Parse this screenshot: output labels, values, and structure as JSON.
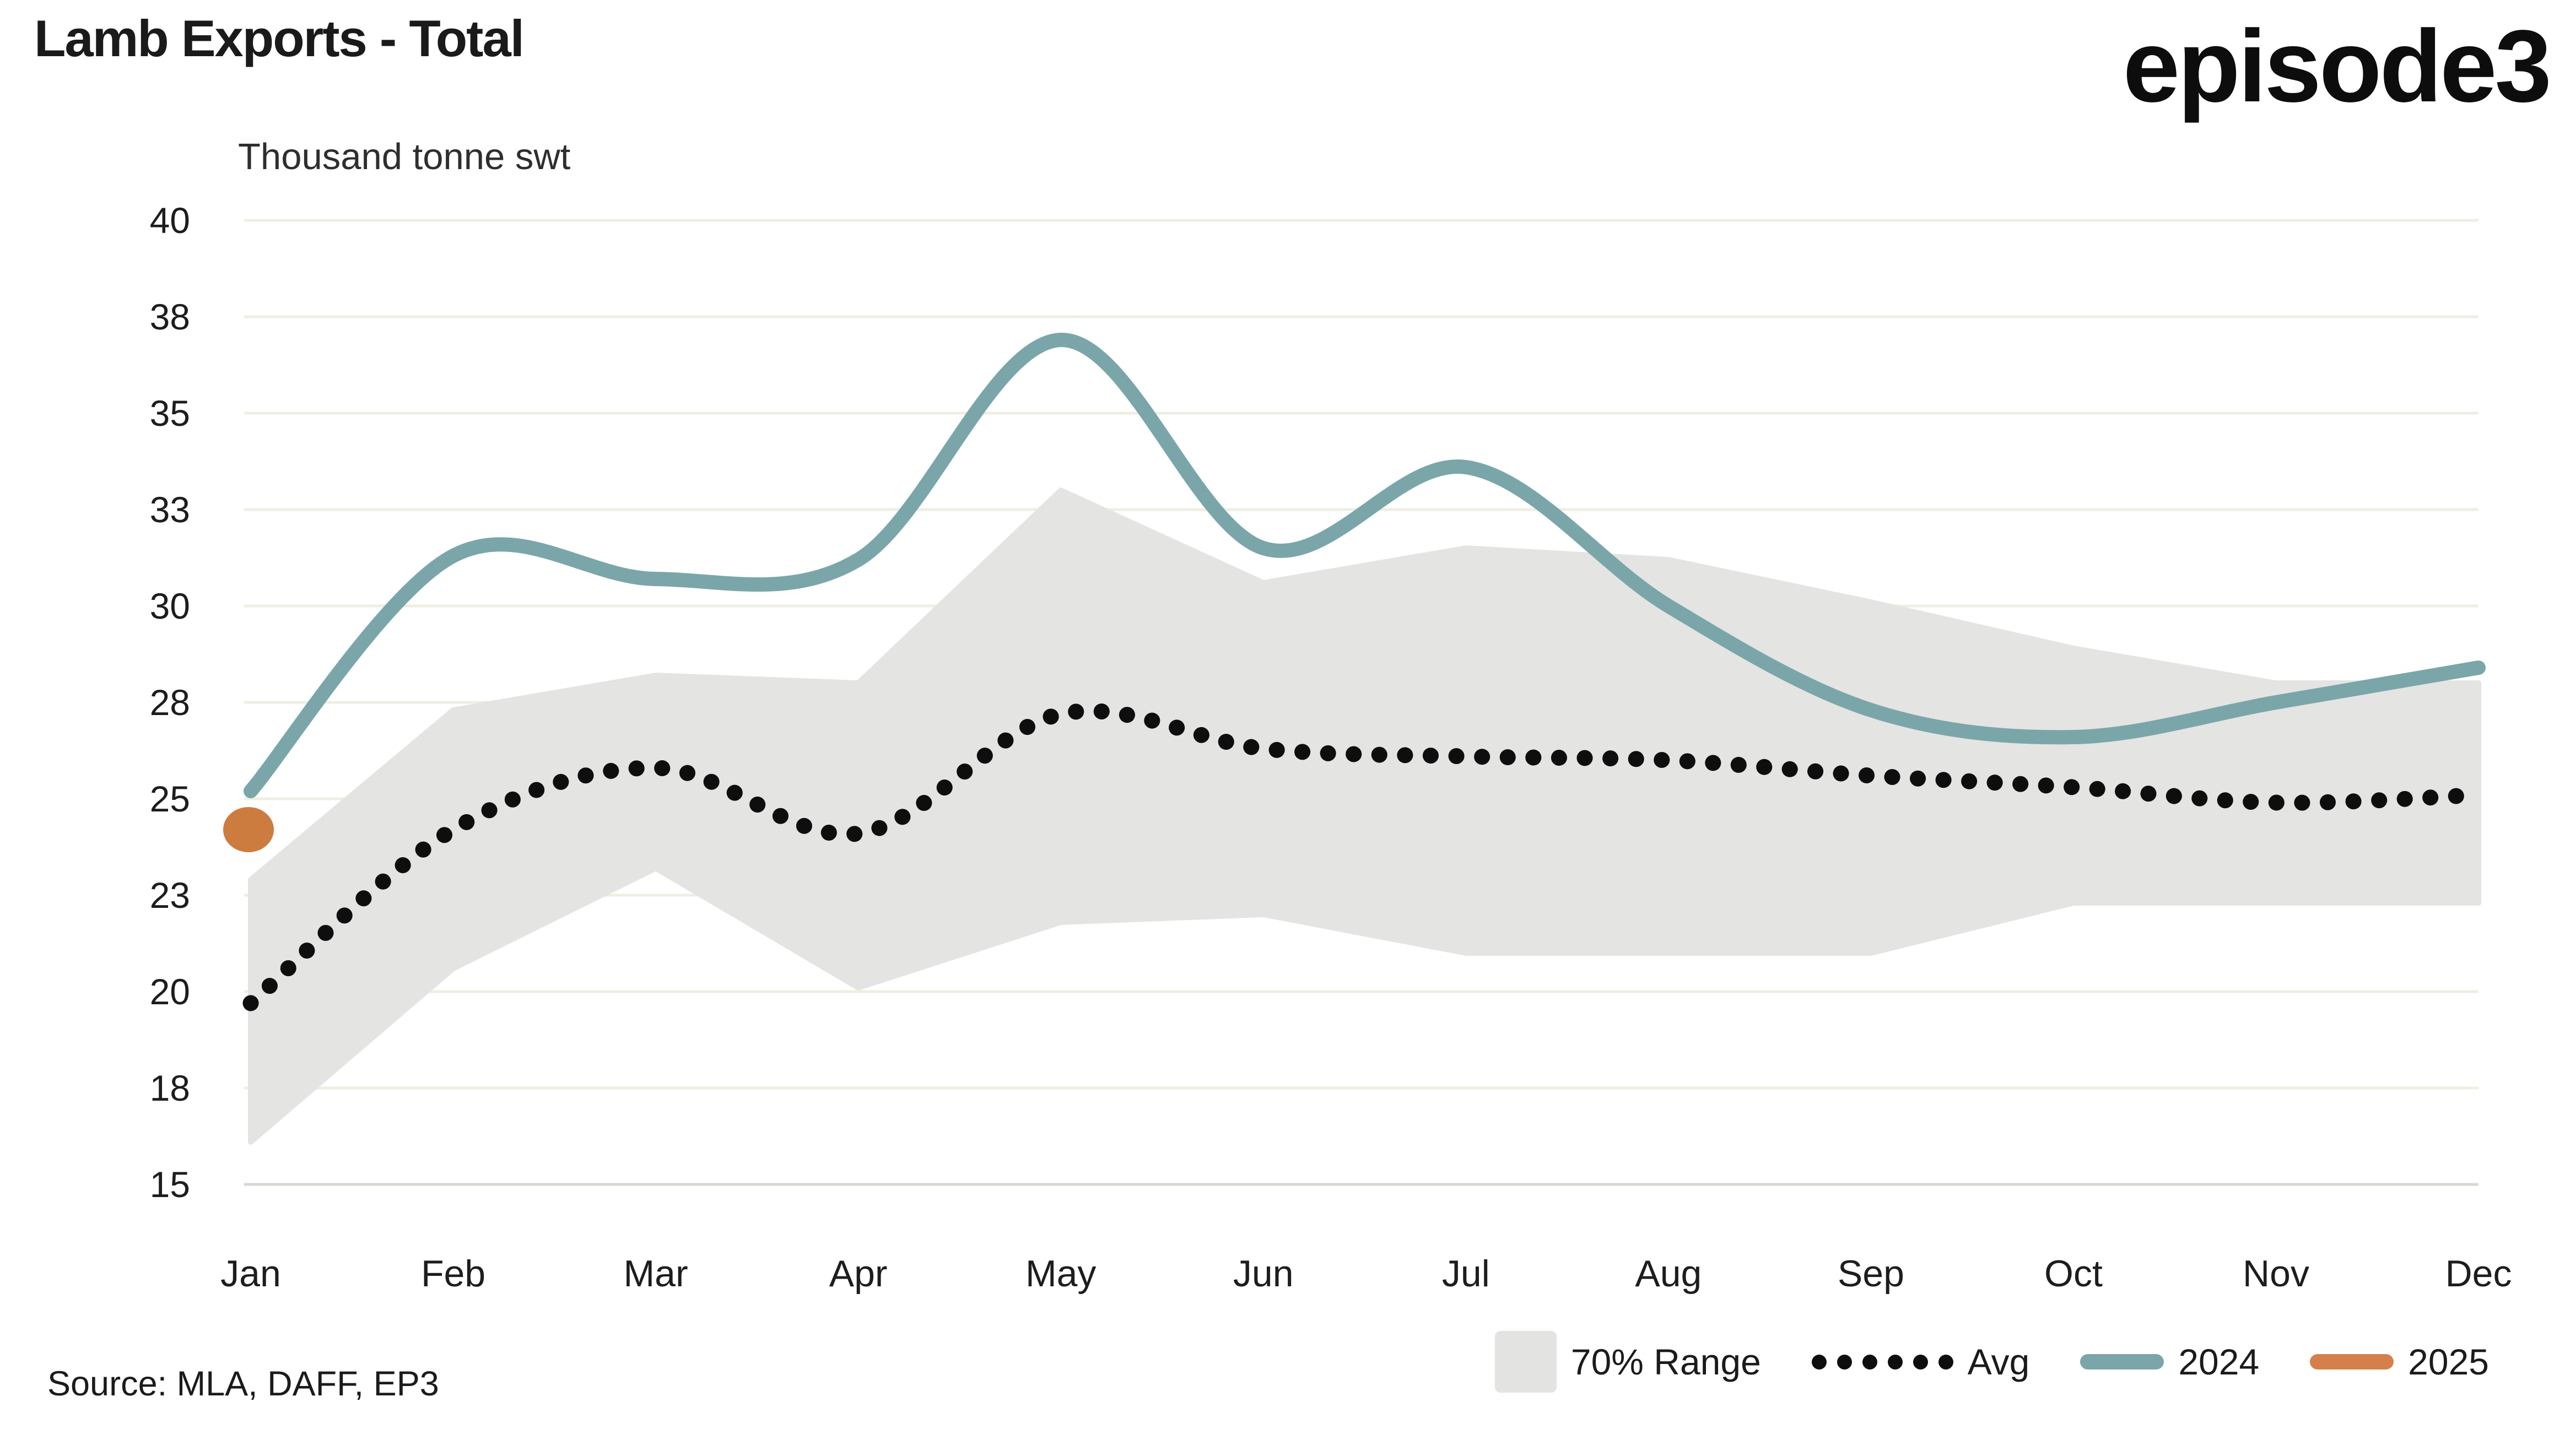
{
  "header": {
    "title": "Lamb Exports - Total",
    "subtitle": "Thousand tonne swt",
    "logo": "episode3"
  },
  "source_text": "Source: MLA, DAFF, EP3",
  "colors": {
    "band": "#e4e4e2",
    "avg": "#0e0e0e",
    "y2024": "#7aa6aa",
    "y2025": "#cd7c40",
    "grid": "#efeee2",
    "grid_bottom": "#d8d8d0",
    "axis_text": "#1d1d1d"
  },
  "legend": {
    "items": [
      {
        "label": "70% Range",
        "type": "band"
      },
      {
        "label": "Avg",
        "type": "dotted"
      },
      {
        "label": "2024",
        "type": "line-2024"
      },
      {
        "label": "2025",
        "type": "line-2025"
      }
    ]
  },
  "chart_data": {
    "type": "line",
    "title": "Lamb Exports - Total",
    "xlabel": "",
    "ylabel": "Thousand tonne swt",
    "categories": [
      "Jan",
      "Feb",
      "Mar",
      "Apr",
      "May",
      "Jun",
      "Jul",
      "Aug",
      "Sep",
      "Oct",
      "Nov",
      "Dec"
    ],
    "y_axis": {
      "range": [
        15,
        40
      ],
      "grid_step": 2.5,
      "grid": true,
      "ticks": [
        {
          "label": "40",
          "value": 40
        },
        {
          "label": "38",
          "value": 37.5
        },
        {
          "label": "35",
          "value": 35
        },
        {
          "label": "33",
          "value": 32.5
        },
        {
          "label": "30",
          "value": 30
        },
        {
          "label": "28",
          "value": 27.5
        },
        {
          "label": "25",
          "value": 25
        },
        {
          "label": "23",
          "value": 22.5
        },
        {
          "label": "20",
          "value": 20
        },
        {
          "label": "18",
          "value": 17.5
        },
        {
          "label": "15",
          "value": 15
        }
      ]
    },
    "legend_position": "bottom-right",
    "series": [
      {
        "name": "70% Range",
        "type": "area-range",
        "upper": [
          22.9,
          27.3,
          28.2,
          28.0,
          33.0,
          30.6,
          31.5,
          31.2,
          30.1,
          28.9,
          28.0,
          28.0
        ],
        "lower": [
          16.1,
          20.6,
          23.2,
          20.1,
          21.8,
          22.0,
          21.0,
          21.0,
          21.0,
          22.3,
          22.3,
          22.3
        ]
      },
      {
        "name": "Avg",
        "type": "line-dotted",
        "values": [
          19.7,
          24.2,
          25.8,
          24.1,
          27.2,
          26.3,
          26.1,
          26.0,
          25.6,
          25.3,
          24.9,
          25.1
        ]
      },
      {
        "name": "2024",
        "type": "line",
        "values": [
          25.2,
          31.3,
          30.7,
          31.2,
          36.9,
          31.5,
          33.6,
          30.0,
          27.3,
          26.6,
          27.5,
          28.4
        ]
      },
      {
        "name": "2025",
        "type": "point",
        "values": [
          24.2,
          null,
          null,
          null,
          null,
          null,
          null,
          null,
          null,
          null,
          null,
          null
        ]
      }
    ]
  }
}
